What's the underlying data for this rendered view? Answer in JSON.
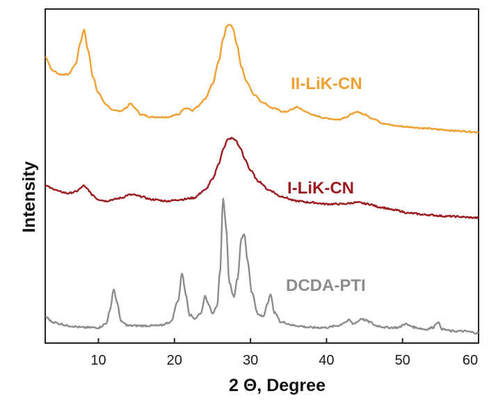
{
  "chart_data": {
    "type": "line",
    "title": "",
    "xlabel": "2 Θ, Degree",
    "ylabel": "Intensity",
    "xlim": [
      3,
      60
    ],
    "x_ticks": [
      "10",
      "20",
      "30",
      "40",
      "50",
      "60"
    ],
    "y_ticks": false,
    "grid": false,
    "legend": "none (series labelled inline next to curves)",
    "series": [
      {
        "name": "II-LiK-CN",
        "color": "#F0A030",
        "x": [
          3,
          4,
          5,
          6,
          7,
          7.6,
          8.1,
          8.6,
          9.3,
          10,
          11,
          12,
          13,
          13.6,
          14.2,
          14.8,
          15.6,
          17,
          19,
          20.5,
          21.3,
          21.8,
          22.3,
          23,
          24,
          25,
          25.8,
          26.4,
          26.9,
          27.3,
          27.7,
          28.2,
          28.8,
          29.5,
          30.5,
          31.5,
          33,
          34.5,
          35.5,
          36,
          36.5,
          37.3,
          38.5,
          40,
          41.5,
          42.6,
          43.5,
          44.2,
          45,
          46,
          47.5,
          49,
          51,
          53,
          55,
          57,
          60
        ],
        "values": [
          74,
          63,
          60,
          60,
          68,
          85,
          96,
          80,
          58,
          45,
          36,
          31,
          31,
          33,
          37,
          33,
          28,
          26,
          26,
          28,
          33,
          33,
          31,
          34,
          40,
          52,
          70,
          88,
          99,
          100,
          97,
          84,
          66,
          54,
          44,
          38,
          33,
          30,
          32,
          34,
          33,
          30,
          27,
          25,
          24,
          26,
          29,
          30,
          28,
          25,
          21,
          19,
          18,
          17,
          16,
          15,
          14
        ]
      },
      {
        "name": "I-LiK-CN",
        "color": "#9B1B1F",
        "x": [
          3,
          4,
          5,
          6,
          7,
          7.6,
          8,
          8.5,
          9.2,
          10,
          11,
          12,
          13,
          14,
          14.6,
          15.5,
          17,
          19,
          21,
          22.5,
          24,
          25,
          25.8,
          26.5,
          27,
          27.5,
          28,
          28.6,
          29.3,
          30,
          31,
          32.5,
          34,
          36,
          38,
          40,
          42,
          44,
          45.5,
          47,
          49,
          51,
          53,
          56,
          60
        ],
        "values": [
          36,
          34,
          32,
          31,
          32,
          34,
          36,
          34,
          30,
          27,
          26,
          27,
          28,
          30,
          30,
          29,
          27,
          26,
          27,
          28,
          33,
          40,
          50,
          61,
          66,
          67,
          66,
          61,
          53,
          46,
          39,
          33,
          29,
          26,
          25,
          24,
          24,
          25,
          24,
          22,
          20,
          18,
          17,
          16,
          15
        ]
      },
      {
        "name": "DCDA-PTI",
        "color": "#8C8C8C",
        "x": [
          3,
          4,
          5,
          6,
          8,
          10,
          11,
          11.5,
          12,
          12.5,
          13,
          14,
          16,
          18,
          19.5,
          20.5,
          21,
          21.5,
          22,
          22.7,
          23.5,
          24,
          24.5,
          25,
          25.6,
          26,
          26.4,
          26.8,
          27.2,
          27.8,
          28.3,
          28.8,
          29.2,
          29.6,
          30.2,
          31,
          31.7,
          32.2,
          32.6,
          33.2,
          34,
          36,
          38,
          40,
          41.5,
          42.5,
          43,
          43.5,
          44,
          44.6,
          45.1,
          45.7,
          46.5,
          48,
          49.5,
          50.3,
          51,
          51.7,
          53,
          54,
          54.6,
          55.3,
          56.5,
          58,
          60
        ],
        "values": [
          13,
          10,
          9,
          8,
          7,
          7,
          9,
          16,
          28,
          20,
          10,
          8,
          8,
          8,
          10,
          22,
          37,
          25,
          14,
          12,
          15,
          24,
          20,
          15,
          18,
          38,
          78,
          62,
          32,
          24,
          34,
          56,
          58,
          44,
          26,
          14,
          13,
          20,
          25,
          15,
          10,
          8,
          7,
          7,
          8,
          10,
          11,
          9,
          10,
          12,
          11,
          10,
          8,
          7,
          7,
          9,
          8,
          7,
          6,
          7,
          10,
          6,
          5,
          5,
          4
        ]
      }
    ]
  }
}
